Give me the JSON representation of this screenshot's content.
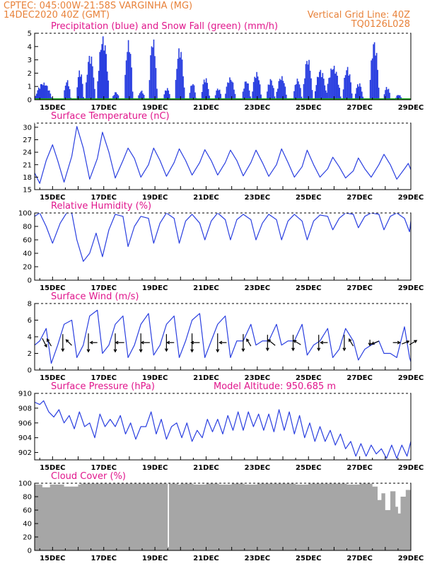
{
  "header": {
    "line1_left": "CPTEC:   045:00W-21:58S   VARGINHA (MG)",
    "line2_left": "14DEC2020 40Z (GMT)",
    "line1_right": "Vertical Grid Line: 40Z",
    "line2_right": "TQ0126L028"
  },
  "colors": {
    "precip": "#2a3fe0",
    "snow": "#19a319",
    "line": "#2a3fe0",
    "cloud": "#a6a6a6",
    "arrow": "#000000",
    "title": "#e0168c",
    "header": "#e8823a"
  },
  "chart_data": [
    {
      "id": "precip",
      "type": "bar",
      "title": "Precipitation (blue) and Snow Fall (green) (mm/h)",
      "ylim": [
        0,
        5
      ],
      "yticks": [
        0,
        1,
        2,
        3,
        4,
        5
      ],
      "xlim": [
        14.3,
        29.0
      ],
      "xticks": [
        "15DEC",
        "17DEC",
        "19DEC",
        "21DEC",
        "23DEC",
        "25DEC",
        "27DEC",
        "29DEC"
      ],
      "xtick_days": [
        15,
        17,
        19,
        21,
        23,
        25,
        27,
        29
      ],
      "events": [
        {
          "day": 14.62,
          "peak": 1.3,
          "span": 0.7
        },
        {
          "day": 15.55,
          "peak": 1.5,
          "span": 0.3
        },
        {
          "day": 16.05,
          "peak": 2.3,
          "span": 0.3
        },
        {
          "day": 16.45,
          "peak": 3.5,
          "span": 0.4
        },
        {
          "day": 16.95,
          "peak": 4.8,
          "span": 0.5
        },
        {
          "day": 17.45,
          "peak": 0.6,
          "span": 0.3
        },
        {
          "day": 17.95,
          "peak": 4.5,
          "span": 0.35
        },
        {
          "day": 18.45,
          "peak": 0.7,
          "span": 0.3
        },
        {
          "day": 18.9,
          "peak": 4.7,
          "span": 0.35
        },
        {
          "day": 19.45,
          "peak": 0.9,
          "span": 0.3
        },
        {
          "day": 19.95,
          "peak": 4.0,
          "span": 0.4
        },
        {
          "day": 20.45,
          "peak": 1.3,
          "span": 0.3
        },
        {
          "day": 20.95,
          "peak": 1.7,
          "span": 0.35
        },
        {
          "day": 21.45,
          "peak": 0.9,
          "span": 0.3
        },
        {
          "day": 21.92,
          "peak": 1.7,
          "span": 0.45
        },
        {
          "day": 22.55,
          "peak": 1.5,
          "span": 0.35
        },
        {
          "day": 22.95,
          "peak": 2.1,
          "span": 0.4
        },
        {
          "day": 23.5,
          "peak": 1.6,
          "span": 0.35
        },
        {
          "day": 23.92,
          "peak": 1.8,
          "span": 0.45
        },
        {
          "day": 24.55,
          "peak": 1.6,
          "span": 0.35
        },
        {
          "day": 24.95,
          "peak": 3.2,
          "span": 0.4
        },
        {
          "day": 25.45,
          "peak": 2.3,
          "span": 0.5
        },
        {
          "day": 25.95,
          "peak": 2.6,
          "span": 0.6
        },
        {
          "day": 26.5,
          "peak": 2.5,
          "span": 0.4
        },
        {
          "day": 26.95,
          "peak": 1.3,
          "span": 0.35
        },
        {
          "day": 27.55,
          "peak": 4.5,
          "span": 0.4
        },
        {
          "day": 28.05,
          "peak": 1.0,
          "span": 0.3
        },
        {
          "day": 28.5,
          "peak": 0.4,
          "span": 0.3
        }
      ]
    },
    {
      "id": "temperature",
      "type": "line",
      "title": "Surface Temperature (nC)",
      "ylim": [
        15,
        31
      ],
      "yticks": [
        15,
        18,
        21,
        24,
        27,
        30
      ],
      "xlim": [
        14.3,
        29.0
      ],
      "xticks": [
        "15DEC",
        "17DEC",
        "19DEC",
        "21DEC",
        "23DEC",
        "25DEC",
        "27DEC",
        "29DEC"
      ],
      "xtick_days": [
        15,
        17,
        19,
        21,
        23,
        25,
        27,
        29
      ],
      "x": [
        14.3,
        14.5,
        14.75,
        15.0,
        15.2,
        15.45,
        15.75,
        15.95,
        16.2,
        16.45,
        16.75,
        16.95,
        17.2,
        17.45,
        17.75,
        17.95,
        18.2,
        18.45,
        18.75,
        18.95,
        19.2,
        19.45,
        19.75,
        19.95,
        20.2,
        20.45,
        20.75,
        20.95,
        21.2,
        21.45,
        21.75,
        21.95,
        22.2,
        22.45,
        22.75,
        22.95,
        23.2,
        23.45,
        23.75,
        23.95,
        24.2,
        24.45,
        24.75,
        24.95,
        25.2,
        25.45,
        25.75,
        25.95,
        26.2,
        26.45,
        26.75,
        26.95,
        27.2,
        27.45,
        27.75,
        27.95,
        28.2,
        28.45,
        28.75,
        28.9,
        29.0
      ],
      "y": [
        19.0,
        16.5,
        22.0,
        25.8,
        22.0,
        16.8,
        23.0,
        30.2,
        25.0,
        17.5,
        22.5,
        28.8,
        24.0,
        17.8,
        22.0,
        25.0,
        22.5,
        18.0,
        21.0,
        25.0,
        22.0,
        18.2,
        21.5,
        24.8,
        22.0,
        18.5,
        21.5,
        24.6,
        22.0,
        18.5,
        21.5,
        24.5,
        22.0,
        18.3,
        21.5,
        24.5,
        21.5,
        18.2,
        21.0,
        24.8,
        21.5,
        18.0,
        20.5,
        24.5,
        21.0,
        18.0,
        20.0,
        22.8,
        20.5,
        17.8,
        19.5,
        22.6,
        20.0,
        18.0,
        21.0,
        23.5,
        21.0,
        17.5,
        20.0,
        21.3,
        19.8
      ]
    },
    {
      "id": "humidity",
      "type": "line",
      "title": "Relative Humidity (%)",
      "ylim": [
        0,
        100
      ],
      "yticks": [
        0,
        20,
        40,
        60,
        80,
        100
      ],
      "xlim": [
        14.3,
        29.0
      ],
      "xticks": [
        "15DEC",
        "17DEC",
        "19DEC",
        "21DEC",
        "23DEC",
        "25DEC",
        "27DEC",
        "29DEC"
      ],
      "xtick_days": [
        15,
        17,
        19,
        21,
        23,
        25,
        27,
        29
      ],
      "x": [
        14.3,
        14.5,
        14.75,
        15.0,
        15.3,
        15.55,
        15.75,
        15.95,
        16.2,
        16.45,
        16.7,
        16.95,
        17.2,
        17.45,
        17.75,
        17.95,
        18.2,
        18.45,
        18.75,
        18.95,
        19.2,
        19.45,
        19.75,
        19.95,
        20.2,
        20.45,
        20.75,
        20.95,
        21.2,
        21.45,
        21.75,
        21.95,
        22.2,
        22.45,
        22.75,
        22.95,
        23.2,
        23.45,
        23.75,
        23.95,
        24.2,
        24.45,
        24.75,
        24.95,
        25.2,
        25.45,
        25.75,
        25.95,
        26.2,
        26.45,
        26.75,
        26.95,
        27.2,
        27.45,
        27.75,
        27.95,
        28.2,
        28.45,
        28.75,
        28.95,
        29.0
      ],
      "y": [
        95,
        100,
        80,
        55,
        85,
        100,
        100,
        60,
        28,
        40,
        70,
        35,
        75,
        98,
        95,
        50,
        80,
        95,
        92,
        55,
        85,
        100,
        92,
        55,
        88,
        98,
        85,
        60,
        88,
        100,
        90,
        60,
        90,
        98,
        90,
        60,
        85,
        98,
        90,
        60,
        88,
        98,
        88,
        60,
        88,
        97,
        95,
        75,
        92,
        100,
        98,
        78,
        95,
        100,
        98,
        75,
        95,
        100,
        92,
        72,
        88
      ]
    },
    {
      "id": "wind",
      "type": "line",
      "title": "Surface Wind (m/s)",
      "ylim": [
        0,
        8
      ],
      "yticks": [
        0,
        2,
        4,
        6,
        8
      ],
      "xlim": [
        14.3,
        29.0
      ],
      "xticks": [
        "15DEC",
        "17DEC",
        "19DEC",
        "21DEC",
        "23DEC",
        "25DEC",
        "27DEC",
        "29DEC"
      ],
      "xtick_days": [
        15,
        17,
        19,
        21,
        23,
        25,
        27,
        29
      ],
      "x": [
        14.3,
        14.5,
        14.75,
        14.95,
        15.2,
        15.45,
        15.75,
        15.95,
        16.2,
        16.45,
        16.75,
        16.95,
        17.2,
        17.45,
        17.75,
        17.95,
        18.2,
        18.45,
        18.75,
        18.95,
        19.2,
        19.45,
        19.75,
        19.95,
        20.2,
        20.45,
        20.75,
        20.95,
        21.2,
        21.45,
        21.75,
        21.95,
        22.2,
        22.45,
        22.75,
        22.95,
        23.2,
        23.45,
        23.75,
        23.95,
        24.2,
        24.45,
        24.75,
        24.95,
        25.2,
        25.45,
        25.75,
        25.95,
        26.2,
        26.45,
        26.75,
        26.95,
        27.2,
        27.45,
        27.75,
        27.95,
        28.2,
        28.45,
        28.75,
        28.95,
        29.0
      ],
      "y": [
        3.0,
        3.5,
        5.0,
        0.8,
        3.0,
        5.5,
        6.0,
        1.5,
        3.0,
        6.5,
        7.2,
        2.0,
        3.0,
        5.5,
        6.5,
        1.5,
        3.0,
        5.5,
        6.8,
        1.8,
        3.0,
        5.5,
        6.5,
        1.5,
        3.5,
        6.0,
        6.8,
        1.5,
        3.5,
        5.5,
        6.5,
        1.5,
        3.5,
        3.5,
        5.5,
        3.0,
        3.5,
        3.5,
        5.5,
        3.0,
        3.5,
        3.5,
        5.5,
        1.8,
        3.0,
        3.5,
        5.0,
        1.5,
        2.5,
        5.0,
        3.5,
        1.2,
        2.5,
        3.0,
        3.5,
        2.0,
        2.0,
        1.5,
        5.2,
        1.5,
        1.0
      ],
      "arrows": [
        {
          "day": 14.6,
          "dx": 6,
          "dy": 12
        },
        {
          "day": 14.95,
          "dx": -6,
          "dy": -10
        },
        {
          "day": 15.4,
          "dx": 0,
          "dy": 24
        },
        {
          "day": 15.75,
          "dx": -8,
          "dy": -8
        },
        {
          "day": 16.4,
          "dx": 0,
          "dy": 26
        },
        {
          "day": 16.75,
          "dx": -10,
          "dy": 0
        },
        {
          "day": 17.45,
          "dx": 0,
          "dy": 26
        },
        {
          "day": 17.8,
          "dx": -12,
          "dy": 0
        },
        {
          "day": 18.45,
          "dx": 0,
          "dy": 26
        },
        {
          "day": 18.8,
          "dx": -12,
          "dy": 0
        },
        {
          "day": 19.45,
          "dx": 0,
          "dy": 24
        },
        {
          "day": 19.75,
          "dx": -10,
          "dy": 0
        },
        {
          "day": 20.45,
          "dx": 0,
          "dy": 26
        },
        {
          "day": 20.75,
          "dx": -12,
          "dy": 0
        },
        {
          "day": 21.45,
          "dx": 0,
          "dy": 26
        },
        {
          "day": 21.8,
          "dx": -10,
          "dy": 0
        },
        {
          "day": 22.45,
          "dx": 0,
          "dy": 24
        },
        {
          "day": 22.75,
          "dx": -6,
          "dy": -10
        },
        {
          "day": 23.4,
          "dx": 0,
          "dy": 22
        },
        {
          "day": 23.7,
          "dx": -10,
          "dy": -8
        },
        {
          "day": 24.4,
          "dx": 0,
          "dy": 22
        },
        {
          "day": 24.7,
          "dx": -10,
          "dy": -6
        },
        {
          "day": 25.4,
          "dx": 0,
          "dy": 22
        },
        {
          "day": 25.75,
          "dx": -10,
          "dy": 0
        },
        {
          "day": 26.4,
          "dx": 0,
          "dy": 22
        },
        {
          "day": 26.75,
          "dx": -6,
          "dy": -10
        },
        {
          "day": 27.4,
          "dx": 0,
          "dy": 8
        },
        {
          "day": 27.75,
          "dx": -10,
          "dy": 4
        },
        {
          "day": 28.3,
          "dx": 10,
          "dy": 0
        },
        {
          "day": 28.65,
          "dx": 10,
          "dy": -4
        },
        {
          "day": 28.95,
          "dx": 10,
          "dy": -6
        }
      ]
    },
    {
      "id": "pressure",
      "type": "line",
      "title": "Surface Pressure (hPa)",
      "annotation": "Model Altitude: 950.685 m",
      "ylim": [
        901,
        910
      ],
      "yticks": [
        902,
        904,
        906,
        908,
        910
      ],
      "xlim": [
        14.3,
        29.0
      ],
      "xticks": [
        "15DEC",
        "17DEC",
        "19DEC",
        "21DEC",
        "23DEC",
        "25DEC",
        "27DEC",
        "29DEC"
      ],
      "xtick_days": [
        15,
        17,
        19,
        21,
        23,
        25,
        27,
        29
      ],
      "x": [
        14.3,
        14.5,
        14.65,
        14.85,
        15.05,
        15.25,
        15.45,
        15.65,
        15.85,
        16.05,
        16.25,
        16.45,
        16.65,
        16.85,
        17.05,
        17.25,
        17.45,
        17.65,
        17.85,
        18.05,
        18.25,
        18.45,
        18.65,
        18.85,
        19.05,
        19.25,
        19.45,
        19.65,
        19.85,
        20.05,
        20.25,
        20.45,
        20.65,
        20.85,
        21.05,
        21.25,
        21.45,
        21.65,
        21.85,
        22.05,
        22.25,
        22.45,
        22.65,
        22.85,
        23.05,
        23.25,
        23.45,
        23.65,
        23.85,
        24.05,
        24.25,
        24.45,
        24.65,
        24.85,
        25.05,
        25.25,
        25.45,
        25.65,
        25.85,
        26.05,
        26.25,
        26.45,
        26.65,
        26.85,
        27.05,
        27.25,
        27.45,
        27.65,
        27.85,
        28.05,
        28.25,
        28.45,
        28.65,
        28.85,
        29.0
      ],
      "y": [
        908.8,
        908.5,
        909.0,
        907.5,
        906.8,
        907.8,
        906.0,
        907.0,
        905.2,
        907.5,
        905.5,
        906.0,
        904.0,
        907.2,
        905.5,
        906.5,
        905.5,
        907.0,
        904.5,
        906.0,
        903.8,
        905.5,
        905.5,
        907.5,
        904.5,
        906.5,
        903.8,
        905.5,
        906.0,
        904.0,
        906.0,
        903.5,
        905.0,
        904.0,
        906.5,
        904.8,
        906.5,
        904.5,
        907.0,
        905.0,
        907.5,
        905.0,
        907.5,
        905.5,
        907.2,
        905.0,
        907.2,
        904.8,
        907.8,
        905.0,
        907.5,
        904.5,
        907.0,
        904.0,
        906.0,
        903.5,
        905.5,
        903.5,
        905.0,
        903.0,
        904.5,
        902.5,
        903.5,
        901.5,
        903.2,
        901.5,
        903.0,
        901.8,
        902.5,
        901.2,
        903.0,
        901.2,
        903.0,
        901.5,
        903.5
      ]
    },
    {
      "id": "cloud",
      "type": "area",
      "title": "Cloud Cover (%)",
      "ylim": [
        0,
        100
      ],
      "yticks": [
        0,
        20,
        40,
        60,
        80,
        100
      ],
      "xlim": [
        14.3,
        29.0
      ],
      "xticks": [
        "15DEC",
        "17DEC",
        "19DEC",
        "21DEC",
        "23DEC",
        "25DEC",
        "27DEC",
        "29DEC"
      ],
      "xtick_days": [
        15,
        17,
        19,
        21,
        23,
        25,
        27,
        29
      ],
      "x": [
        14.3,
        14.55,
        14.6,
        14.9,
        15.0,
        15.4,
        15.45,
        16.0,
        16.1,
        16.5,
        17.0,
        17.5,
        18.0,
        18.5,
        19.0,
        19.4,
        19.5,
        19.55,
        19.6,
        19.9,
        20.0,
        20.5,
        21.0,
        21.5,
        22.0,
        22.5,
        23.0,
        23.5,
        24.0,
        24.5,
        25.0,
        25.5,
        26.0,
        26.5,
        27.0,
        27.5,
        27.7,
        27.85,
        28.0,
        28.2,
        28.4,
        28.5,
        28.6,
        28.8,
        29.0
      ],
      "y": [
        98,
        98,
        94,
        98,
        98,
        98,
        95,
        98,
        100,
        100,
        100,
        100,
        100,
        100,
        100,
        100,
        5,
        100,
        100,
        98,
        100,
        98,
        100,
        98,
        100,
        98,
        100,
        100,
        100,
        98,
        100,
        100,
        100,
        98,
        100,
        95,
        75,
        85,
        60,
        88,
        65,
        55,
        80,
        90,
        95
      ]
    }
  ]
}
